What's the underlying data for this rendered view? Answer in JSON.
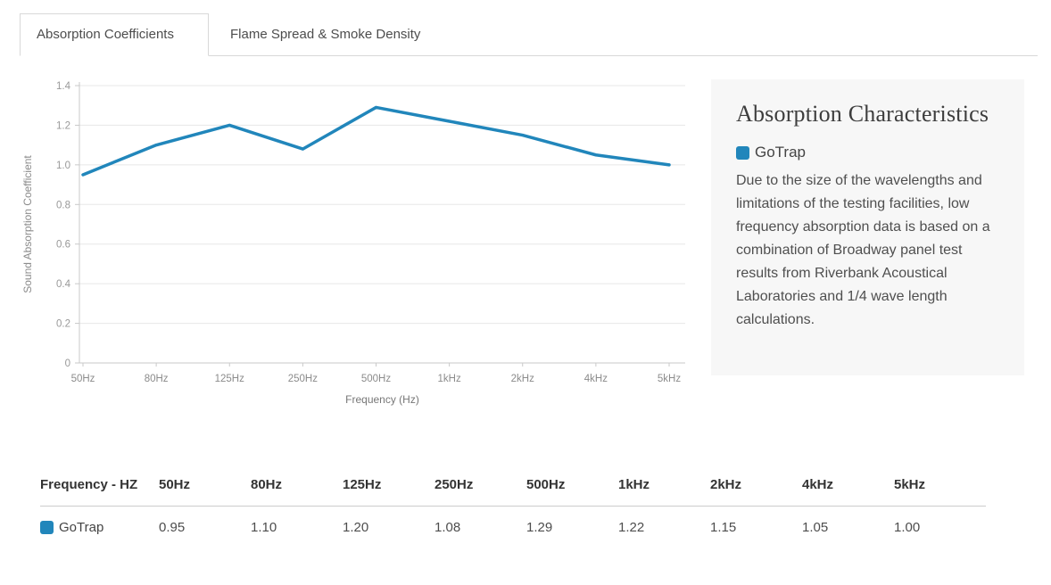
{
  "tabs": [
    {
      "label": "Absorption Coefficients",
      "active": true
    },
    {
      "label": "Flame Spread & Smoke Density",
      "active": false
    }
  ],
  "chart_data": {
    "type": "line",
    "categories": [
      "50Hz",
      "80Hz",
      "125Hz",
      "250Hz",
      "500Hz",
      "1kHz",
      "2kHz",
      "4kHz",
      "5kHz"
    ],
    "series": [
      {
        "name": "GoTrap",
        "color": "#2186bb",
        "values": [
          0.95,
          1.1,
          1.2,
          1.08,
          1.29,
          1.22,
          1.15,
          1.05,
          1.0
        ]
      }
    ],
    "xlabel": "Frequency (Hz)",
    "ylabel": "Sound Absorption Coefficient",
    "ylim": [
      0,
      1.4
    ],
    "ytick_step": 0.2,
    "grid": "horizontal",
    "legend_position": "side-panel"
  },
  "side_panel": {
    "title": "Absorption Characteristics",
    "legend": {
      "label": "GoTrap",
      "color": "#2186bb"
    },
    "description": "Due to the size of the wavelengths and limitations of the testing facilities, low frequency absorption data is based on a combination of Broadway panel test results from Riverbank Acoustical Laboratories and 1/4 wave length calculations."
  },
  "table": {
    "header": [
      "Frequency - HZ",
      "50Hz",
      "80Hz",
      "125Hz",
      "250Hz",
      "500Hz",
      "1kHz",
      "2kHz",
      "4kHz",
      "5kHz"
    ],
    "rows": [
      {
        "label": "GoTrap",
        "color": "#2186bb",
        "values": [
          "0.95",
          "1.10",
          "1.20",
          "1.08",
          "1.29",
          "1.22",
          "1.15",
          "1.05",
          "1.00"
        ]
      }
    ]
  },
  "colors": {
    "accent": "#2186bb",
    "panel_bg": "#f7f7f7",
    "border": "#d8d8d8",
    "gridline": "#e7e7e7",
    "axis": "#c9c9c9"
  }
}
